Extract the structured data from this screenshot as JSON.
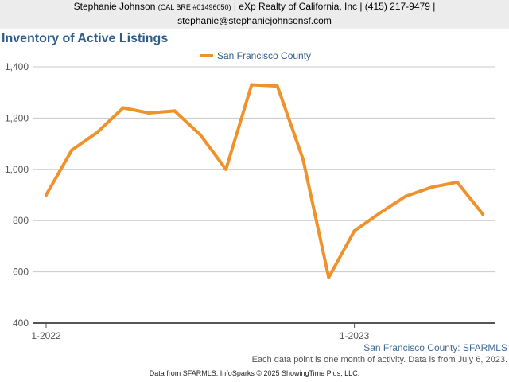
{
  "header": {
    "name": "Stephanie Johnson",
    "license": "(CAL BRE #01496050)",
    "company": "| eXp Realty of California, Inc | (415) 217-9479 |",
    "email": "stephanie@stephaniejohnsonsf.com"
  },
  "chart_data": {
    "type": "line",
    "title": "Inventory of Active Listings",
    "legend_position": "top",
    "grid": true,
    "ylim": [
      400,
      1400
    ],
    "y_ticks": [
      "400",
      "600",
      "800",
      "1,000",
      "1,200",
      "1,400"
    ],
    "x_tick_labels": [
      "1-2022",
      "1-2023"
    ],
    "x": [
      "2022-01",
      "2022-02",
      "2022-03",
      "2022-04",
      "2022-05",
      "2022-06",
      "2022-07",
      "2022-08",
      "2022-09",
      "2022-10",
      "2022-11",
      "2022-12",
      "2023-01",
      "2023-02",
      "2023-03",
      "2023-04",
      "2023-05",
      "2023-06"
    ],
    "series": [
      {
        "name": "San Francisco County",
        "color": "#f0922b",
        "values": [
          900,
          1075,
          1145,
          1240,
          1220,
          1228,
          1135,
          1000,
          1330,
          1325,
          1040,
          578,
          760,
          830,
          895,
          930,
          950,
          825
        ]
      }
    ]
  },
  "footer": {
    "source": "San Francisco County: SFARMLS",
    "description": "Each data point is one month of activity. Data is from July 6, 2023.",
    "credit": "Data from SFARMLS. InfoSparks © 2025 ShowingTime Plus, LLC."
  }
}
